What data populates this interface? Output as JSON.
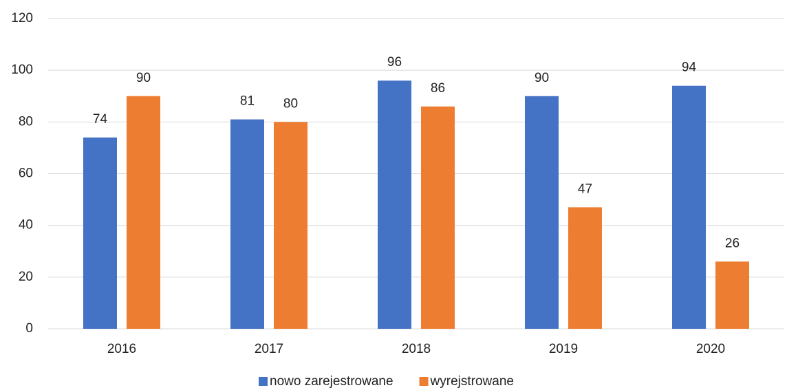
{
  "chart_data": {
    "type": "bar",
    "categories": [
      "2016",
      "2017",
      "2018",
      "2019",
      "2020"
    ],
    "series": [
      {
        "name": "nowo zarejestrowane",
        "color": "#4472c4",
        "values": [
          74,
          81,
          96,
          90,
          94
        ]
      },
      {
        "name": "wyrejstrowane",
        "color": "#ed7d31",
        "values": [
          90,
          80,
          86,
          47,
          26
        ]
      }
    ],
    "ylim": [
      0,
      120
    ],
    "yticks": [
      0,
      20,
      40,
      60,
      80,
      100,
      120
    ],
    "grid": true,
    "legend": "bottom"
  }
}
